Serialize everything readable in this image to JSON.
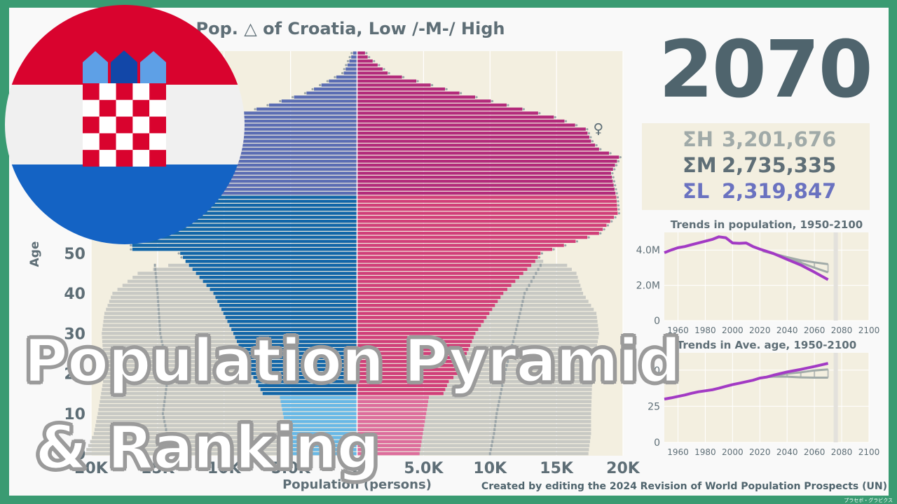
{
  "chart_data": {
    "type": "population_pyramid",
    "title": "Pop. △ of Croatia, Low /-M-/ High",
    "xlabel": "Population (persons)",
    "ylabel": "Age",
    "year": "2070",
    "x_range": [
      -20000,
      20000
    ],
    "x_ticks": [
      -20000,
      -15000,
      -10000,
      -5000,
      0,
      5000,
      10000,
      15000,
      20000
    ],
    "x_tick_labels": [
      "20K",
      "15K",
      "10K",
      "5.0K",
      "0",
      "5.0K",
      "10K",
      "15K",
      "20K"
    ],
    "y_ticks": [
      0,
      10,
      20,
      30,
      40,
      50
    ],
    "y_tick_labels": [
      "0",
      "10",
      "20",
      "30",
      "40",
      "50"
    ],
    "max_age": 100,
    "female_symbol": "♀",
    "female_marker_age": 81,
    "age_groups_for_color": {
      "child_max": 14,
      "working_max": 64
    },
    "colors": {
      "male_child": "#68b8e6",
      "male_working": "#1266a8",
      "male_elder": "#5b6db3",
      "female_child": "#dd6d9c",
      "female_working": "#d13f79",
      "female_elder": "#b32b7b",
      "reference": "#c8c9c4",
      "line": "#9aa4a8"
    },
    "male_medium_ctrl": [
      [
        0,
        5000
      ],
      [
        14,
        5800
      ],
      [
        15,
        7100
      ],
      [
        18,
        7600
      ],
      [
        20,
        8000
      ],
      [
        30,
        9300
      ],
      [
        40,
        10800
      ],
      [
        48,
        12900
      ],
      [
        50,
        13300
      ],
      [
        51,
        16900
      ],
      [
        60,
        17000
      ],
      [
        70,
        15700
      ],
      [
        75,
        14700
      ],
      [
        80,
        11500
      ],
      [
        85,
        8500
      ],
      [
        90,
        3800
      ],
      [
        95,
        1000
      ],
      [
        100,
        300
      ]
    ],
    "female_medium_ctrl": [
      [
        0,
        4700
      ],
      [
        14,
        5400
      ],
      [
        15,
        6500
      ],
      [
        18,
        6900
      ],
      [
        20,
        7600
      ],
      [
        30,
        8900
      ],
      [
        40,
        11000
      ],
      [
        48,
        13400
      ],
      [
        50,
        13800
      ],
      [
        55,
        18200
      ],
      [
        60,
        19600
      ],
      [
        64,
        19500
      ],
      [
        70,
        19100
      ],
      [
        74,
        19700
      ],
      [
        76,
        18200
      ],
      [
        78,
        17600
      ],
      [
        81,
        17200
      ],
      [
        84,
        14800
      ],
      [
        90,
        7700
      ],
      [
        95,
        2300
      ],
      [
        99,
        800
      ],
      [
        100,
        600
      ]
    ],
    "male_reference_ctrl": [
      [
        0,
        20500
      ],
      [
        5,
        19800
      ],
      [
        10,
        19500
      ],
      [
        20,
        19000
      ],
      [
        30,
        19200
      ],
      [
        35,
        19000
      ],
      [
        40,
        18400
      ],
      [
        45,
        16500
      ],
      [
        47,
        14200
      ],
      [
        48,
        12000
      ]
    ],
    "female_reference_ctrl": [
      [
        0,
        17400
      ],
      [
        5,
        17600
      ],
      [
        10,
        17600
      ],
      [
        20,
        17700
      ],
      [
        30,
        18200
      ],
      [
        35,
        18000
      ],
      [
        40,
        17000
      ],
      [
        45,
        16500
      ],
      [
        47,
        15800
      ],
      [
        48,
        14000
      ]
    ],
    "male_low_ctrl": [
      [
        0,
        14000
      ],
      [
        5,
        14300
      ],
      [
        10,
        14600
      ],
      [
        20,
        14200
      ],
      [
        30,
        14800
      ],
      [
        40,
        15000
      ],
      [
        47,
        15200
      ]
    ],
    "female_low_ctrl": [
      [
        0,
        10000
      ],
      [
        5,
        10300
      ],
      [
        10,
        10500
      ],
      [
        20,
        11100
      ],
      [
        30,
        11900
      ],
      [
        40,
        12600
      ],
      [
        47,
        13800
      ]
    ],
    "sums": [
      {
        "label": "ΣH",
        "value": "3,201,676",
        "color": "#a0aaa8"
      },
      {
        "label": "ΣM",
        "value": "2,735,335",
        "color": "#5e6e76"
      },
      {
        "label": "ΣL",
        "value": "2,319,847",
        "color": "#6a72c0"
      }
    ],
    "trends_population": {
      "title": "Trends in population, 1950-2100",
      "x_ticks": [
        1960,
        1980,
        2000,
        2020,
        2040,
        2060,
        2080,
        2100
      ],
      "x_range": [
        1950,
        2100
      ],
      "y_range": [
        0,
        5000000
      ],
      "y_ticks": [
        0,
        2000000,
        4000000
      ],
      "y_tick_labels": [
        "0",
        "2.0M",
        "4.0M"
      ],
      "current_year": 2070,
      "series": [
        {
          "points": [
            [
              1950,
              3850000
            ],
            [
              1955,
              4000000
            ],
            [
              1960,
              4130000
            ],
            [
              1965,
              4200000
            ],
            [
              1970,
              4300000
            ],
            [
              1975,
              4400000
            ],
            [
              1980,
              4500000
            ],
            [
              1985,
              4600000
            ],
            [
              1990,
              4750000
            ],
            [
              1995,
              4700000
            ],
            [
              2000,
              4400000
            ],
            [
              2005,
              4380000
            ],
            [
              2010,
              4400000
            ],
            [
              2015,
              4200000
            ],
            [
              2020,
              4050000
            ],
            [
              2025,
              3930000
            ],
            [
              2030,
              3800000
            ],
            [
              2040,
              3470000
            ],
            [
              2050,
              3150000
            ],
            [
              2060,
              2750000
            ],
            [
              2070,
              2320000
            ]
          ],
          "color": "#a23ac4"
        },
        {
          "points": [
            [
              2022,
              3950000
            ],
            [
              2030,
              3800000
            ],
            [
              2040,
              3600000
            ],
            [
              2050,
              3420000
            ],
            [
              2060,
              3300000
            ],
            [
              2070,
              3200000
            ]
          ],
          "color": "#a0aaa8"
        },
        {
          "points": [
            [
              2022,
              3950000
            ],
            [
              2030,
              3780000
            ],
            [
              2040,
              3540000
            ],
            [
              2050,
              3280000
            ],
            [
              2060,
              3000000
            ],
            [
              2070,
              2735000
            ]
          ],
          "color": "#a0aaa8"
        }
      ]
    },
    "trends_age": {
      "title": "Trends in Ave. age, 1950-2100",
      "x_ticks": [
        1960,
        1980,
        2000,
        2020,
        2040,
        2060,
        2080,
        2100
      ],
      "x_range": [
        1950,
        2100
      ],
      "y_range": [
        0,
        62
      ],
      "y_ticks": [
        0,
        25,
        50
      ],
      "y_tick_labels": [
        "0",
        "25",
        "50"
      ],
      "current_year": 2070,
      "series": [
        {
          "points": [
            [
              1950,
              30
            ],
            [
              1955,
              30.8
            ],
            [
              1960,
              31.8
            ],
            [
              1965,
              32.8
            ],
            [
              1970,
              34
            ],
            [
              1975,
              35
            ],
            [
              1980,
              35.7
            ],
            [
              1985,
              36.4
            ],
            [
              1990,
              37.5
            ],
            [
              1995,
              38.8
            ],
            [
              2000,
              40
            ],
            [
              2005,
              41
            ],
            [
              2010,
              42
            ],
            [
              2015,
              43
            ],
            [
              2020,
              44.5
            ],
            [
              2025,
              45.2
            ],
            [
              2030,
              46.5
            ],
            [
              2040,
              48.8
            ],
            [
              2050,
              50.5
            ],
            [
              2060,
              52.5
            ],
            [
              2070,
              54.7
            ]
          ],
          "color": "#a23ac4"
        },
        {
          "points": [
            [
              2022,
              45
            ],
            [
              2030,
              45.5
            ],
            [
              2040,
              45.5
            ],
            [
              2050,
              45
            ],
            [
              2060,
              44.8
            ],
            [
              2070,
              44.8
            ]
          ],
          "color": "#a0aaa8"
        },
        {
          "points": [
            [
              2022,
              45
            ],
            [
              2030,
              46
            ],
            [
              2040,
              47.5
            ],
            [
              2050,
              48.5
            ],
            [
              2060,
              49.8
            ],
            [
              2070,
              50.5
            ]
          ],
          "color": "#a0aaa8"
        }
      ]
    }
  },
  "overlay": {
    "line1": "Population Pyramid",
    "line2": "& Ranking"
  },
  "credit": "Created by editing the 2024 Revision of World Population Prospects (UN)",
  "small_credit": "プラセボ・グラビクス"
}
